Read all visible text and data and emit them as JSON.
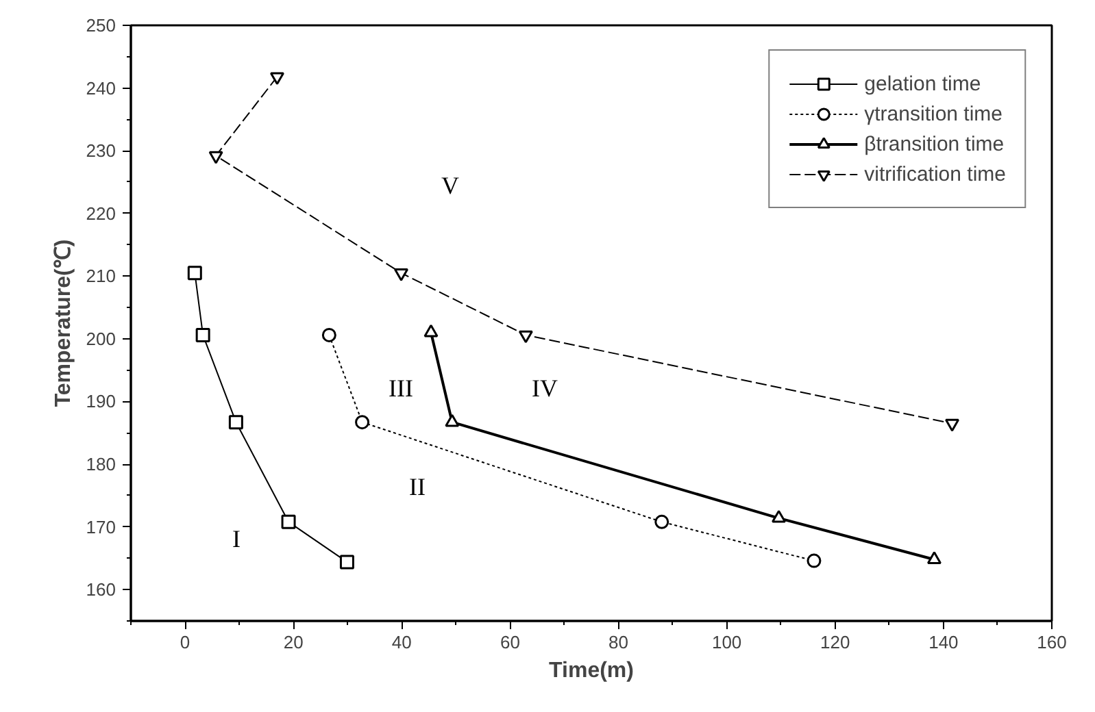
{
  "chart_data": {
    "type": "line",
    "xlabel": "Time(m)",
    "ylabel": "Temperature(℃)",
    "xlim": [
      -10,
      160
    ],
    "xticks": [
      0,
      20,
      40,
      60,
      80,
      100,
      120,
      140,
      160
    ],
    "ylim": [
      155,
      250
    ],
    "yticks": [
      160,
      170,
      180,
      190,
      200,
      210,
      220,
      230,
      240,
      250
    ],
    "grid": false,
    "legend": "top right",
    "series": [
      {
        "name": "gelation time",
        "color": "#000000",
        "marker": "square",
        "line_style": "solid",
        "x": [
          1.8,
          3.3,
          9.4,
          19.1,
          29.9
        ],
        "values": [
          210.5,
          200.6,
          186.7,
          170.8,
          164.4
        ]
      },
      {
        "name": "γtransition time",
        "color": "#000000",
        "marker": "circle",
        "line_style": "dotted",
        "x": [
          26.6,
          32.7,
          88.0,
          116.1
        ],
        "values": [
          200.6,
          186.7,
          170.8,
          164.6
        ]
      },
      {
        "name": "βtransition time",
        "color": "#000000",
        "marker": "triangle",
        "line_style": "solid",
        "x": [
          45.4,
          49.3,
          109.6,
          138.3
        ],
        "values": [
          201,
          186.7,
          171.4,
          164.8
        ]
      },
      {
        "name": "vitrification time",
        "color": "#000000",
        "marker": "triangle",
        "line_style": "dashed",
        "x": [
          17,
          5.7,
          39.9,
          62.9,
          141.6
        ],
        "values": [
          241.8,
          229.2,
          210.5,
          200.6,
          186.5
        ]
      }
    ],
    "annotations": [
      "I",
      "II",
      "III",
      "IV",
      "V"
    ]
  }
}
